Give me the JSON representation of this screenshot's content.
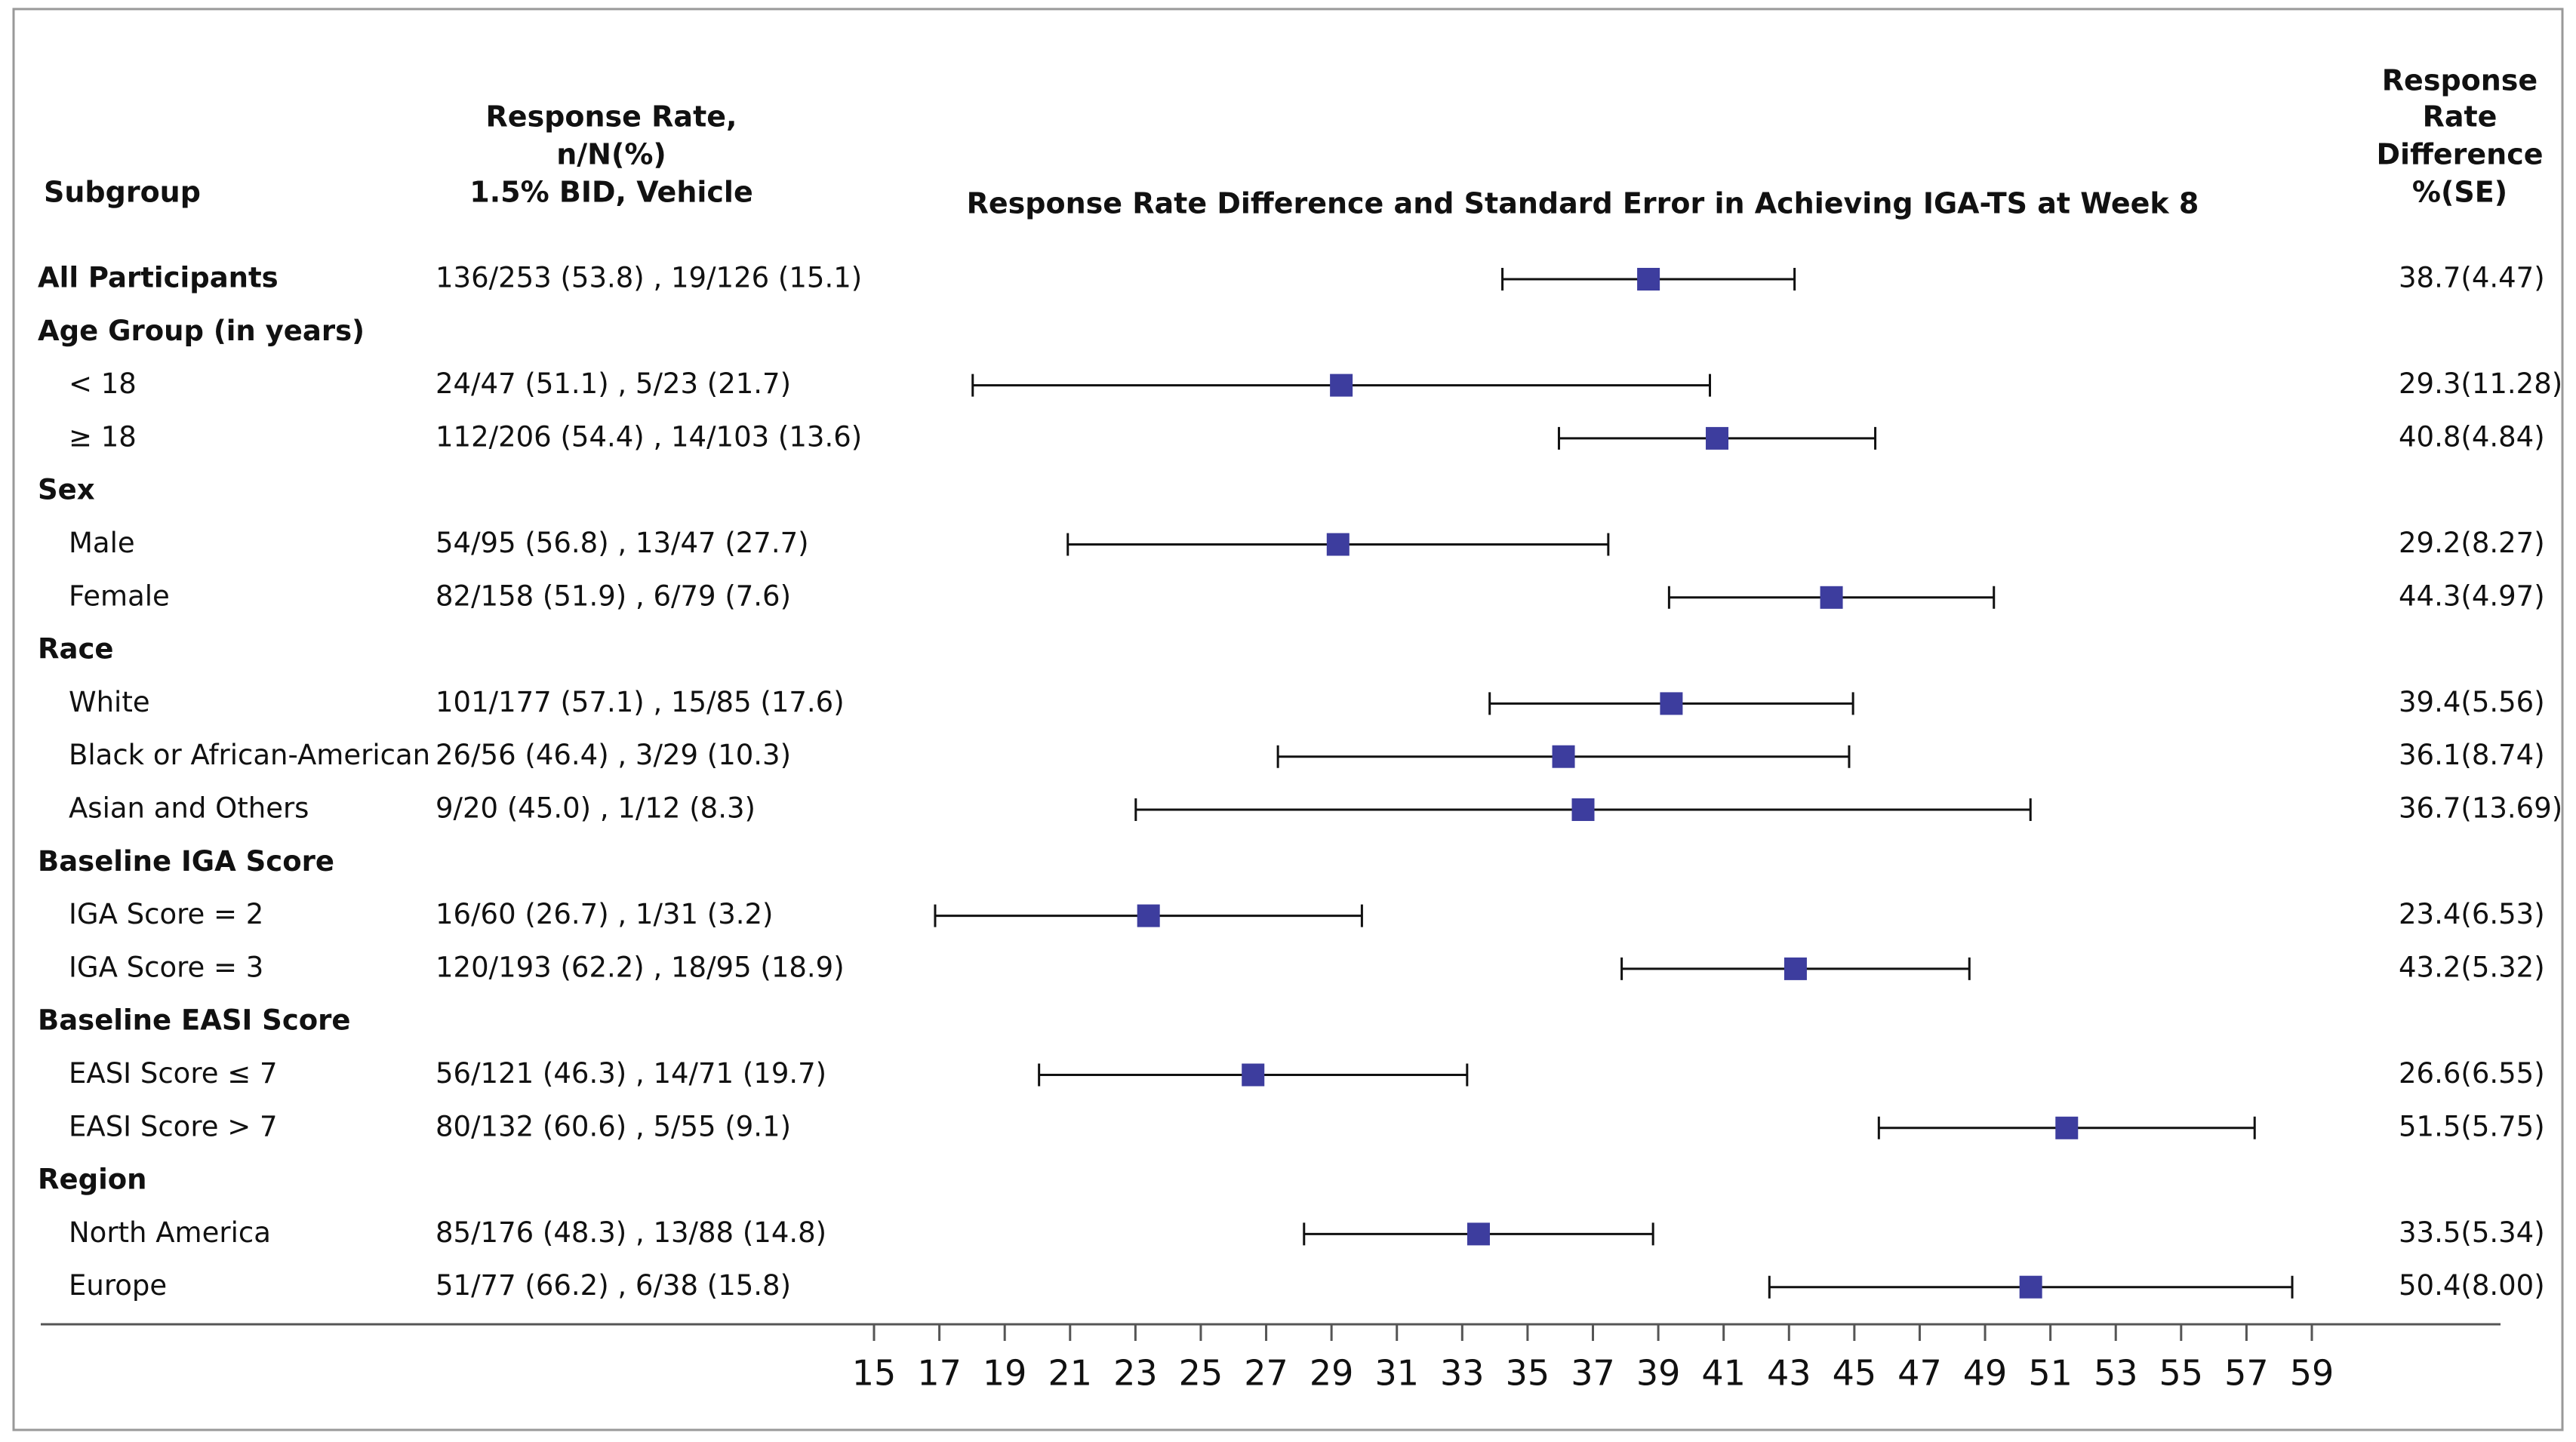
{
  "chart_data": {
    "type": "forest",
    "headers": {
      "subgroup": "Subgroup",
      "response_rate": [
        "Response Rate,",
        "n/N(%)",
        "1.5% BID, Vehicle"
      ],
      "title": "Response Rate Difference and Standard Error in Achieving IGA-TS at Week 8",
      "difference": [
        "Response",
        "Rate",
        "Difference",
        "%(SE)"
      ]
    },
    "categories": [
      "All Participants",
      "Age Group (in years)",
      "< 18",
      "≥ 18",
      "Sex",
      "Male",
      "Female",
      "Race",
      "White",
      "Black or African-American",
      "Asian and Others",
      "Baseline IGA Score",
      "IGA Score = 2",
      "IGA Score = 3",
      "Baseline EASI Score",
      "EASI Score ≤ 7",
      "EASI Score > 7",
      "Region",
      "North America",
      "Europe"
    ],
    "indented": [
      false,
      false,
      true,
      true,
      false,
      true,
      true,
      false,
      true,
      true,
      true,
      false,
      true,
      true,
      false,
      true,
      true,
      false,
      true,
      true
    ],
    "response_rates": [
      "136/253 (53.8) , 19/126 (15.1)",
      null,
      "24/47 (51.1) , 5/23 (21.7)",
      "112/206 (54.4) , 14/103 (13.6)",
      null,
      "54/95 (56.8) , 13/47 (27.7)",
      "82/158 (51.9) , 6/79 (7.6)",
      null,
      "101/177 (57.1) , 15/85 (17.6)",
      "26/56 (46.4) , 3/29 (10.3)",
      "9/20 (45.0) , 1/12 (8.3)",
      null,
      "16/60 (26.7) , 1/31 (3.2)",
      "120/193 (62.2) , 18/95 (18.9)",
      null,
      "56/121 (46.3) , 14/71 (19.7)",
      "80/132 (60.6) , 5/55 (9.1)",
      null,
      "85/176 (48.3) , 13/88 (14.8)",
      "51/77 (66.2) , 6/38 (15.8)"
    ],
    "values": [
      38.7,
      null,
      29.3,
      40.8,
      null,
      29.2,
      44.3,
      null,
      39.4,
      36.1,
      36.7,
      null,
      23.4,
      43.2,
      null,
      26.6,
      51.5,
      null,
      33.5,
      50.4
    ],
    "errors": [
      4.47,
      null,
      11.28,
      4.84,
      null,
      8.27,
      4.97,
      null,
      5.56,
      8.74,
      13.69,
      null,
      6.53,
      5.32,
      null,
      6.55,
      5.75,
      null,
      5.34,
      8.0
    ],
    "value_labels": [
      "38.7(4.47)",
      null,
      "29.3(11.28)",
      "40.8(4.84)",
      null,
      "29.2(8.27)",
      "44.3(4.97)",
      null,
      "39.4(5.56)",
      "36.1(8.74)",
      "36.7(13.69)",
      null,
      "23.4(6.53)",
      "43.2(5.32)",
      null,
      "26.6(6.55)",
      "51.5(5.75)",
      null,
      "33.5(5.34)",
      "50.4(8.00)"
    ],
    "xlim": [
      15,
      59
    ],
    "xticks": [
      15,
      17,
      19,
      21,
      23,
      25,
      27,
      29,
      31,
      33,
      35,
      37,
      39,
      41,
      43,
      45,
      47,
      49,
      51,
      53,
      55,
      57,
      59
    ],
    "color": "#3d3d9e"
  }
}
